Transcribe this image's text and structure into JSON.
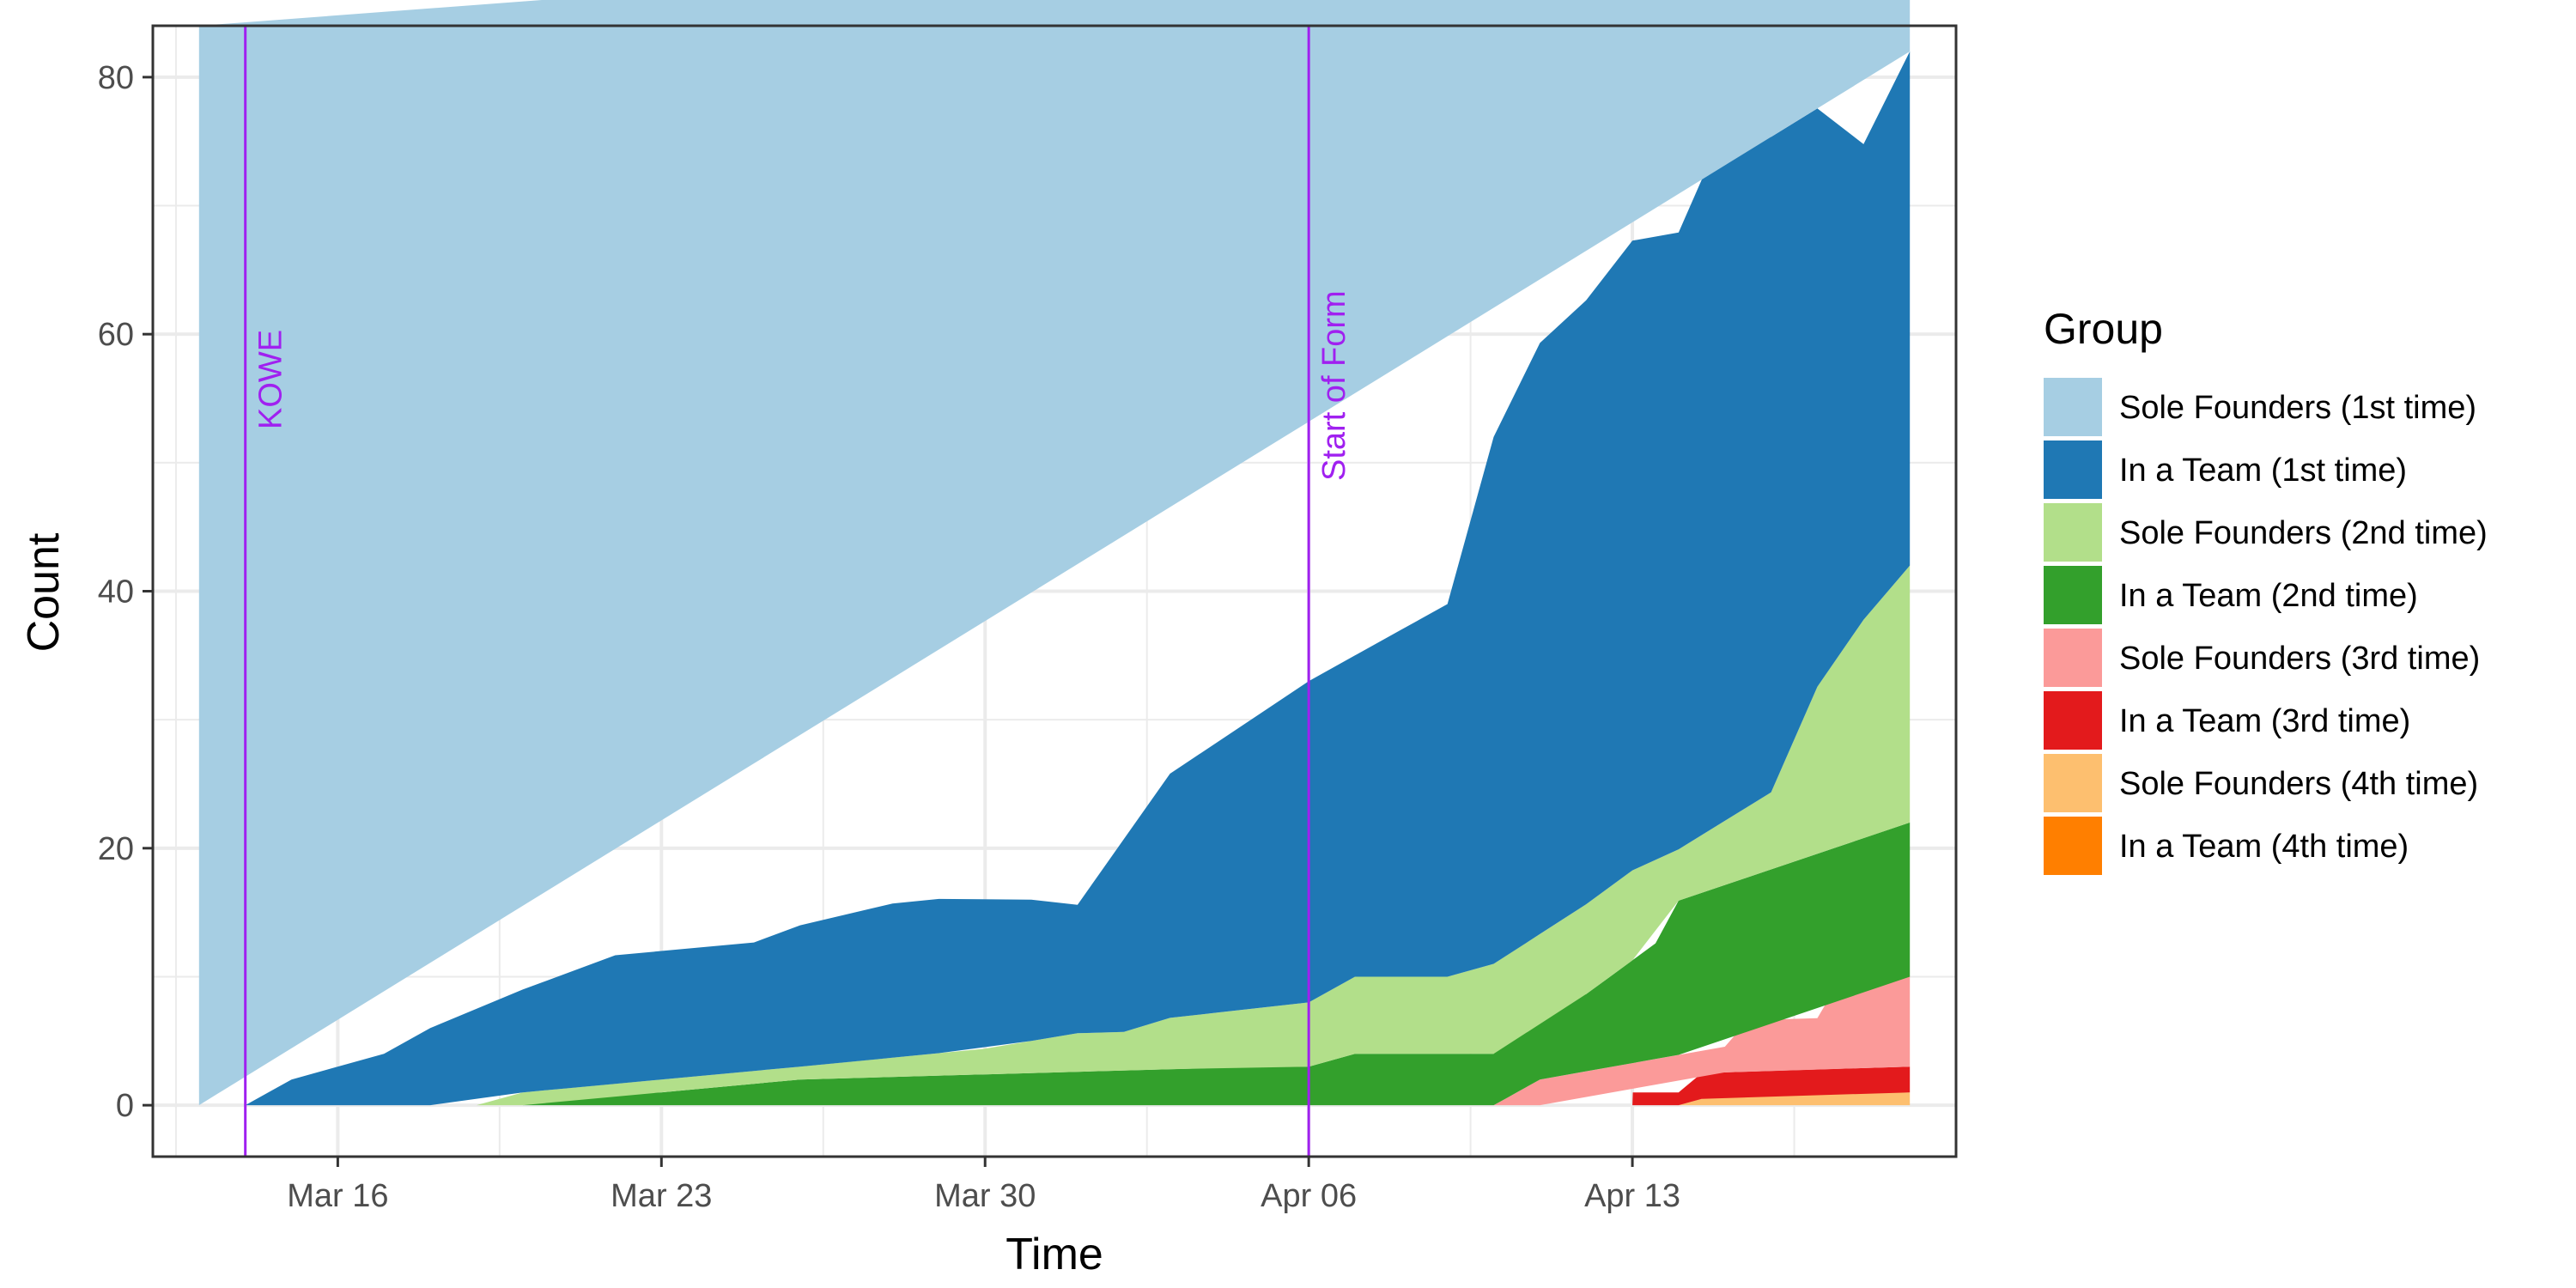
{
  "chart_data": {
    "type": "area",
    "stacked": true,
    "xlabel": "Time",
    "ylabel": "Count",
    "x_ticks": [
      "Mar 16",
      "Mar 23",
      "Mar 30",
      "Apr 06",
      "Apr 13"
    ],
    "y_ticks": [
      0,
      20,
      40,
      60,
      80
    ],
    "ylim": [
      -4,
      84
    ],
    "xlim": [
      "2020-03-12",
      "2020-04-20"
    ],
    "grid": true,
    "legend": {
      "title": "Group",
      "position": "right"
    },
    "annotations": [
      {
        "x": "2020-03-14",
        "label": "KOWE",
        "color": "#A020F0"
      },
      {
        "x": "2020-04-06",
        "label": "Start of Form",
        "color": "#A020F0"
      }
    ],
    "series": [
      {
        "name": "In a Team (4th time)",
        "color": "#FF7F00",
        "points": [
          [
            "2020-03-13",
            0
          ],
          [
            "2020-04-19",
            0
          ]
        ]
      },
      {
        "name": "Sole Founders (4th time)",
        "color": "#FDBF6F",
        "points": [
          [
            "2020-03-13",
            0
          ],
          [
            "2020-04-14",
            0
          ],
          [
            "2020-04-15",
            1
          ],
          [
            "2020-04-19",
            1
          ]
        ]
      },
      {
        "name": "In a Team (3rd time)",
        "color": "#E31A1C",
        "points": [
          [
            "2020-03-13",
            0
          ],
          [
            "2020-04-13",
            0
          ],
          [
            "2020-04-13.01",
            1
          ],
          [
            "2020-04-14",
            1
          ],
          [
            "2020-04-14.5",
            2
          ],
          [
            "2020-04-19",
            2
          ]
        ]
      },
      {
        "name": "Sole Founders (3rd time)",
        "color": "#FB9A99",
        "points": [
          [
            "2020-03-13",
            0
          ],
          [
            "2020-04-10",
            0
          ],
          [
            "2020-04-10.5",
            1
          ],
          [
            "2020-04-11",
            2
          ],
          [
            "2020-04-15",
            2
          ],
          [
            "2020-04-15.5",
            4
          ],
          [
            "2020-04-17",
            4
          ],
          [
            "2020-04-17.5",
            7
          ],
          [
            "2020-04-19",
            7
          ]
        ]
      },
      {
        "name": "In a Team (2nd time)",
        "color": "#33A02C",
        "points": [
          [
            "2020-03-13",
            0
          ],
          [
            "2020-03-20",
            0
          ],
          [
            "2020-03-21",
            1
          ],
          [
            "2020-03-23",
            1
          ],
          [
            "2020-03-26",
            2
          ],
          [
            "2020-04-05",
            3
          ],
          [
            "2020-04-06",
            3
          ],
          [
            "2020-04-07",
            4
          ],
          [
            "2020-04-10",
            4
          ],
          [
            "2020-04-10.3",
            5
          ],
          [
            "2020-04-11",
            6
          ],
          [
            "2020-04-12",
            6
          ],
          [
            "2020-04-12.5",
            7
          ],
          [
            "2020-04-13",
            8
          ],
          [
            "2020-04-13.5",
            9
          ],
          [
            "2020-04-14",
            12
          ],
          [
            "2020-04-19",
            12
          ]
        ]
      },
      {
        "name": "Sole Founders (2nd time)",
        "color": "#B2DF8A",
        "points": [
          [
            "2020-03-13",
            0
          ],
          [
            "2020-03-19",
            0
          ],
          [
            "2020-03-20",
            1
          ],
          [
            "2020-03-26",
            1
          ],
          [
            "2020-03-30",
            2
          ],
          [
            "2020-04-01",
            3
          ],
          [
            "2020-04-02",
            3
          ],
          [
            "2020-04-03",
            4
          ],
          [
            "2020-04-06",
            5
          ],
          [
            "2020-04-07",
            6
          ],
          [
            "2020-04-09",
            6
          ],
          [
            "2020-04-10",
            7
          ],
          [
            "2020-04-12",
            7
          ],
          [
            "2020-04-13",
            7
          ],
          [
            "2020-04-14",
            4
          ],
          [
            "2020-04-16",
            6
          ],
          [
            "2020-04-17",
            13
          ],
          [
            "2020-04-18",
            17
          ],
          [
            "2020-04-19",
            20
          ]
        ]
      },
      {
        "name": "In a Team (1st time)",
        "color": "#1F78B4",
        "points": [
          [
            "2020-03-13",
            0
          ],
          [
            "2020-03-14",
            0
          ],
          [
            "2020-03-15",
            2
          ],
          [
            "2020-03-17",
            4
          ],
          [
            "2020-03-18",
            6
          ],
          [
            "2020-03-20",
            8
          ],
          [
            "2020-03-21",
            9
          ],
          [
            "2020-03-22",
            10
          ],
          [
            "2020-03-25",
            10
          ],
          [
            "2020-03-26",
            11
          ],
          [
            "2020-03-28",
            12
          ],
          [
            "2020-03-29",
            12
          ],
          [
            "2020-03-31",
            11
          ],
          [
            "2020-04-01",
            10
          ],
          [
            "2020-04-02",
            15
          ],
          [
            "2020-04-03",
            19
          ],
          [
            "2020-04-04",
            21
          ],
          [
            "2020-04-05",
            23
          ],
          [
            "2020-04-06",
            25
          ],
          [
            "2020-04-07",
            25
          ],
          [
            "2020-04-08",
            27
          ],
          [
            "2020-04-09",
            29
          ],
          [
            "2020-04-10",
            41
          ],
          [
            "2020-04-11",
            46
          ],
          [
            "2020-04-12",
            47
          ],
          [
            "2020-04-13",
            49
          ],
          [
            "2020-04-14",
            48
          ],
          [
            "2020-04-15",
            54
          ],
          [
            "2020-04-16",
            51
          ],
          [
            "2020-04-17",
            45
          ],
          [
            "2020-04-18",
            37
          ],
          [
            "2020-04-19",
            40
          ]
        ]
      },
      {
        "name": "Sole Founders (1st time)",
        "color": "#A6CEE3",
        "points": [
          [
            "2020-03-13",
            84
          ],
          [
            "2020-04-19",
            12
          ]
        ]
      }
    ]
  }
}
